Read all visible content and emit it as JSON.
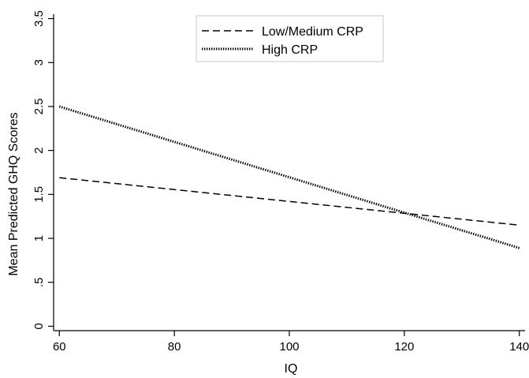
{
  "chart_data": {
    "type": "line",
    "title": "",
    "xlabel": "IQ",
    "ylabel": "Mean Predicted GHQ Scores",
    "xlim": [
      59,
      141
    ],
    "ylim": [
      -0.05,
      3.55
    ],
    "x_ticks": [
      60,
      80,
      100,
      120,
      140
    ],
    "x_tick_labels": [
      "60",
      "80",
      "100",
      "120",
      "140"
    ],
    "y_ticks": [
      0,
      0.5,
      1,
      1.5,
      2,
      2.5,
      3,
      3.5
    ],
    "y_tick_labels": [
      "0",
      ".5",
      "1",
      "1.5",
      "2",
      "2.5",
      "3",
      "3.5"
    ],
    "grid": false,
    "legend_position": "top-center",
    "series": [
      {
        "name": "Low/Medium CRP",
        "style": "dashed",
        "color": "#000000",
        "x": [
          60,
          140
        ],
        "y": [
          1.69,
          1.15
        ]
      },
      {
        "name": "High CRP",
        "style": "dotted",
        "color": "#000000",
        "x": [
          60,
          140
        ],
        "y": [
          2.5,
          0.89
        ]
      }
    ]
  }
}
